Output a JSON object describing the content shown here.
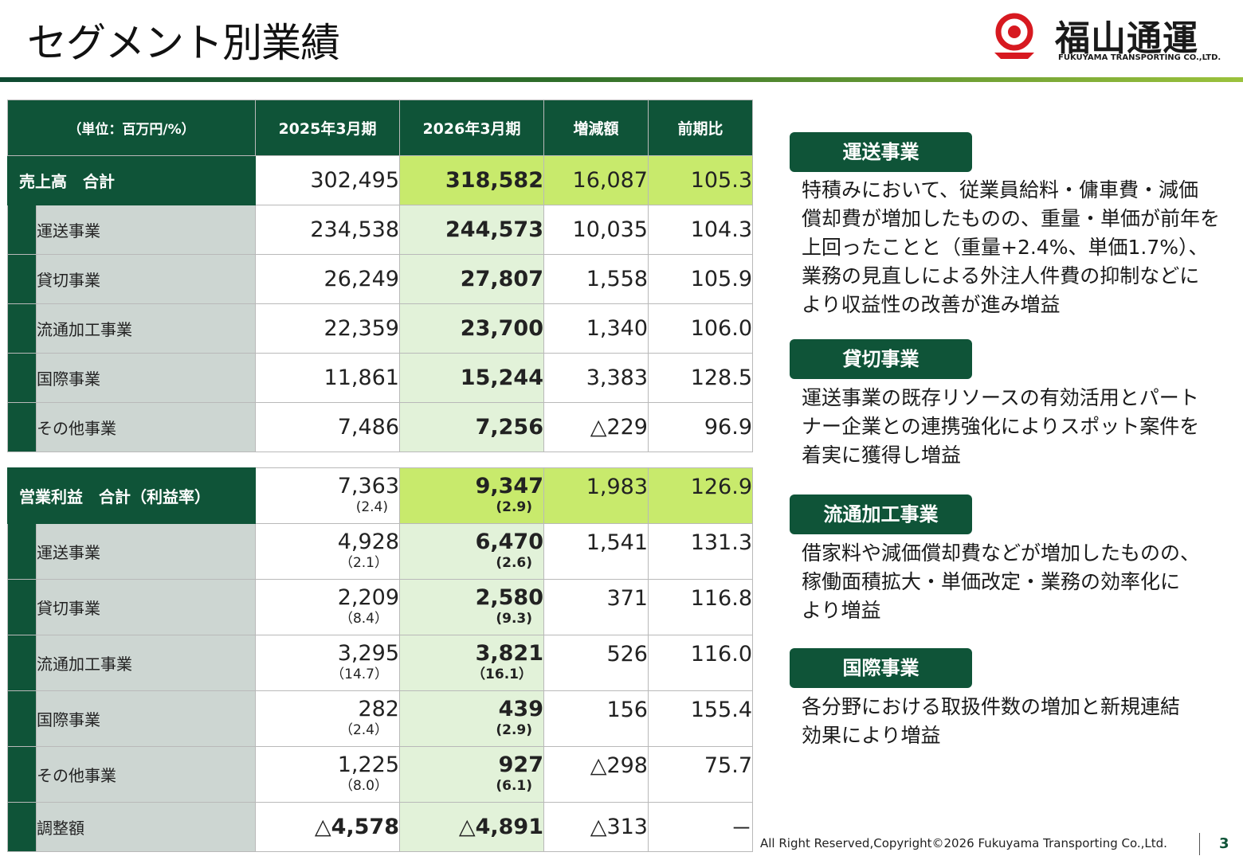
{
  "page": {
    "title": "セグメント別業績",
    "footer": "All Right Reserved,Copyright©2026 Fukuyama Transporting Co.,Ltd.",
    "page_number": "3"
  },
  "logo": {
    "name": "福山通運",
    "sub": "FUKUYAMA TRANSPORTING CO.,LTD."
  },
  "colors": {
    "primary": "#0f5438",
    "total_row": "#c8ea6c",
    "current_col": "#e2f2d9",
    "name_col": "#cdd6d2"
  },
  "table": {
    "headers": [
      "（単位：百万円/%）",
      "2025年3月期",
      "2026年3月期",
      "増減額",
      "前期比"
    ],
    "sales_total": {
      "label": "売上高　合計",
      "prev": "302,495",
      "cur": "318,582",
      "diff": "16,087",
      "ratio": "105.3"
    },
    "sales_rows": [
      {
        "name": "運送事業",
        "prev": "234,538",
        "cur": "244,573",
        "diff": "10,035",
        "ratio": "104.3"
      },
      {
        "name": "貸切事業",
        "prev": "26,249",
        "cur": "27,807",
        "diff": "1,558",
        "ratio": "105.9"
      },
      {
        "name": "流通加工事業",
        "prev": "22,359",
        "cur": "23,700",
        "diff": "1,340",
        "ratio": "106.0"
      },
      {
        "name": "国際事業",
        "prev": "11,861",
        "cur": "15,244",
        "diff": "3,383",
        "ratio": "128.5"
      },
      {
        "name": "その他事業",
        "prev": "7,486",
        "cur": "7,256",
        "diff": "△229",
        "ratio": "96.9"
      }
    ],
    "op_total": {
      "label": "営業利益　合計（利益率）",
      "prev": "7,363",
      "prev_rate": "(2.4)",
      "cur": "9,347",
      "cur_rate": "(2.9)",
      "diff": "1,983",
      "ratio": "126.9"
    },
    "op_rows": [
      {
        "name": "運送事業",
        "prev": "4,928",
        "prev_rate": "（2.1）",
        "cur": "6,470",
        "cur_rate": "(2.6)",
        "diff": "1,541",
        "ratio": "131.3"
      },
      {
        "name": "貸切事業",
        "prev": "2,209",
        "prev_rate": "（8.4）",
        "cur": "2,580",
        "cur_rate": "(9.3)",
        "diff": "371",
        "ratio": "116.8"
      },
      {
        "name": "流通加工事業",
        "prev": "3,295",
        "prev_rate": "（14.7）",
        "cur": "3,821",
        "cur_rate": "（16.1）",
        "diff": "526",
        "ratio": "116.0"
      },
      {
        "name": "国際事業",
        "prev": "282",
        "prev_rate": "（2.4）",
        "cur": "439",
        "cur_rate": "(2.9)",
        "diff": "156",
        "ratio": "155.4"
      },
      {
        "name": "その他事業",
        "prev": "1,225",
        "prev_rate": "（8.0）",
        "cur": "927",
        "cur_rate": "(6.1)",
        "diff": "△298",
        "ratio": "75.7"
      }
    ],
    "adjust": {
      "name": "調整額",
      "prev": "△4,578",
      "cur": "△4,891",
      "diff": "△313",
      "ratio": "－"
    }
  },
  "notes": [
    {
      "tag": "運送事業",
      "lines": [
        "特積みにおいて、従業員給料・傭車費・減価",
        "償却費が増加したものの、重量・単価が前年を",
        "上回ったことと（重量+2.4%、単価1.7%）、",
        "業務の見直しによる外注人件費の抑制などに",
        "より収益性の改善が進み増益"
      ]
    },
    {
      "tag": "貸切事業",
      "lines": [
        "運送事業の既存リソースの有効活用とパート",
        "ナー企業との連携強化によりスポット案件を",
        "着実に獲得し増益"
      ]
    },
    {
      "tag": "流通加工事業",
      "lines": [
        "借家料や減価償却費などが増加したものの、",
        "稼働面積拡大・単価改定・業務の効率化に",
        "より増益"
      ]
    },
    {
      "tag": "国際事業",
      "lines": [
        "各分野における取扱件数の増加と新規連結",
        "効果により増益"
      ]
    }
  ]
}
